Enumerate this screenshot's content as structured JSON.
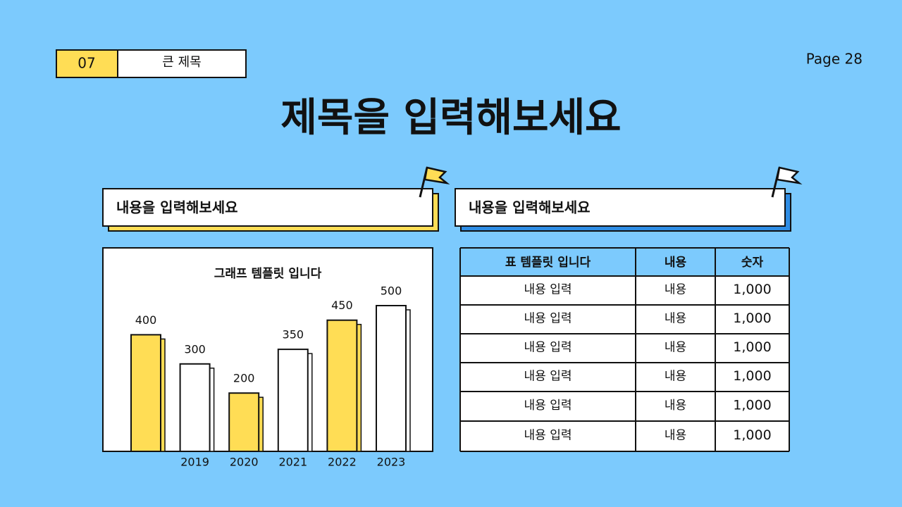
{
  "header": {
    "number": "07",
    "label": "큰 제목",
    "page": "Page 28"
  },
  "title": "제목을 입력해보세요",
  "panels": [
    {
      "title": "내용을 입력해보세요"
    },
    {
      "title": "내용을 입력해보세요"
    }
  ],
  "chart_data": {
    "type": "bar",
    "title": "그래프 템플릿 입니다",
    "categories": [
      null,
      "2019",
      "2020",
      "2021",
      "2022",
      "2023"
    ],
    "values": [
      400,
      300,
      200,
      350,
      450,
      500
    ],
    "colors": [
      "#ffdd55",
      "#ffffff",
      "#ffdd55",
      "#ffffff",
      "#ffdd55",
      "#ffffff"
    ]
  },
  "table": {
    "header": [
      "표 템플릿 입니다",
      "내용",
      "숫자"
    ],
    "rows": [
      [
        "내용 입력",
        "내용",
        "1,000"
      ],
      [
        "내용 입력",
        "내용",
        "1,000"
      ],
      [
        "내용 입력",
        "내용",
        "1,000"
      ],
      [
        "내용 입력",
        "내용",
        "1,000"
      ],
      [
        "내용 입력",
        "내용",
        "1,000"
      ],
      [
        "내용 입력",
        "내용",
        "1,000"
      ]
    ]
  }
}
